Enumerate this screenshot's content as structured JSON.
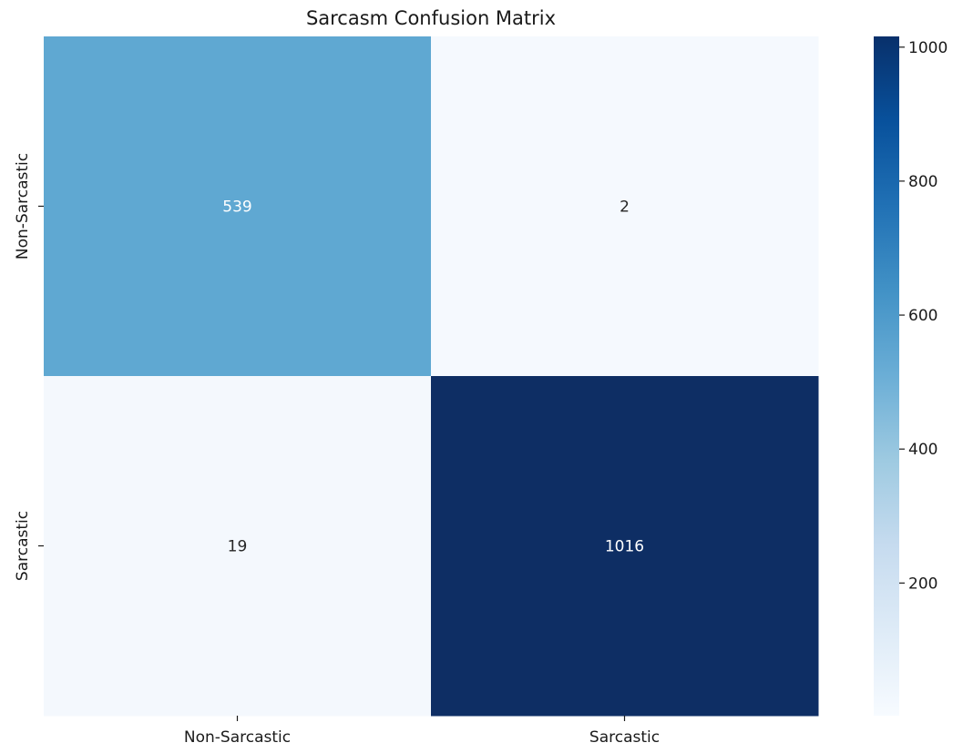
{
  "chart_data": {
    "type": "heatmap",
    "title": "Sarcasm Confusion Matrix",
    "xlabel": "",
    "ylabel": "",
    "x_categories": [
      "Non-Sarcastic",
      "Sarcastic"
    ],
    "y_categories": [
      "Non-Sarcastic",
      "Sarcastic"
    ],
    "values": [
      [
        539,
        2
      ],
      [
        19,
        1016
      ]
    ],
    "colormap": "Blues",
    "colorbar": {
      "min": 2,
      "max": 1016,
      "ticks": [
        200,
        400,
        600,
        800,
        1000
      ]
    },
    "colors": {
      "cell_0_0": "#5fa8d2",
      "cell_0_1": "#f5f9fe",
      "cell_1_0": "#f4f8fd",
      "cell_1_1": "#0e2e64",
      "label_light": "#ffffff",
      "label_dark": "#262626"
    }
  }
}
